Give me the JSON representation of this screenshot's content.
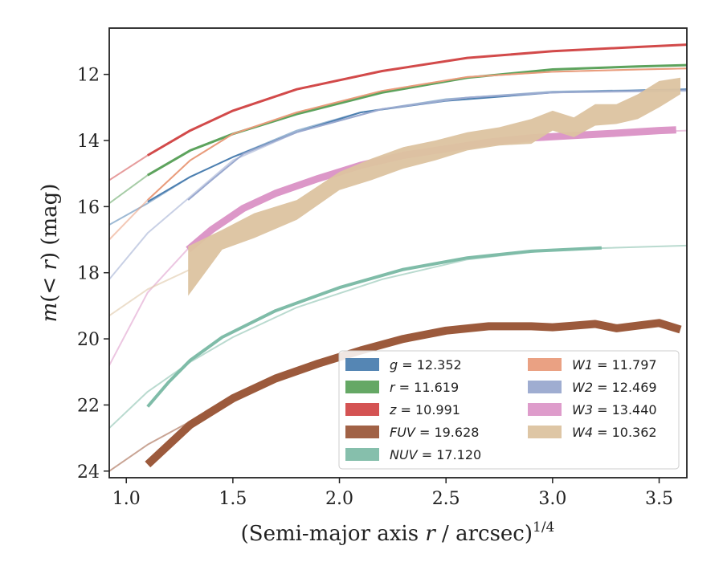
{
  "chart_data": {
    "type": "line",
    "xlabel_main": "(Semi-major axis ",
    "xlabel_var": "r",
    "xlabel_rest": " / arcsec)",
    "xlabel_sup": "1/4",
    "ylabel_m": "m",
    "ylabel_paren": "(",
    "ylabel_lt": "< ",
    "ylabel_r": "r",
    "ylabel_close": ") (mag)",
    "xlim": [
      0.92,
      3.63
    ],
    "ylim": [
      24.2,
      10.6
    ],
    "y_inverted": true,
    "x_ticks": [
      1.0,
      1.5,
      2.0,
      2.5,
      3.0,
      3.5
    ],
    "x_tick_labels": [
      "1.0",
      "1.5",
      "2.0",
      "2.5",
      "3.0",
      "3.5"
    ],
    "y_ticks": [
      12,
      14,
      16,
      18,
      20,
      22,
      24
    ],
    "y_tick_labels": [
      "12",
      "14",
      "16",
      "18",
      "20",
      "22",
      "24"
    ],
    "grid": false,
    "legend_placement": "lower-right",
    "legend_columns": 2,
    "series": [
      {
        "name": "g",
        "legend_var": "g",
        "legend_value": "= 12.352",
        "color": "#4c7fb0",
        "ext_x": [
          0.92,
          1.1,
          1.3,
          1.5,
          1.8,
          2.1,
          2.5,
          3.0,
          3.63
        ],
        "ext_y": [
          16.55,
          15.9,
          15.1,
          14.5,
          13.7,
          13.15,
          12.75,
          12.52,
          12.45
        ],
        "x": [
          1.1,
          1.3,
          1.5,
          1.8,
          2.1,
          2.5,
          3.0,
          3.5,
          3.63
        ],
        "y": [
          15.85,
          15.1,
          14.5,
          13.75,
          13.15,
          12.8,
          12.55,
          12.47,
          12.45
        ],
        "width": 2
      },
      {
        "name": "r",
        "legend_var": "r",
        "legend_value": "= 11.619",
        "color": "#5da35d",
        "ext_x": [
          0.92,
          1.1,
          1.3,
          1.5,
          1.8,
          2.2,
          2.6,
          3.0,
          3.63
        ],
        "ext_y": [
          15.9,
          15.05,
          14.3,
          13.8,
          13.2,
          12.55,
          12.1,
          11.85,
          11.72
        ],
        "x": [
          1.1,
          1.3,
          1.5,
          1.8,
          2.2,
          2.6,
          3.0,
          3.4,
          3.63
        ],
        "y": [
          15.05,
          14.3,
          13.8,
          13.2,
          12.55,
          12.1,
          11.85,
          11.76,
          11.72
        ],
        "width": 3
      },
      {
        "name": "z",
        "legend_var": "z",
        "legend_value": "= 10.991",
        "color": "#d24a4a",
        "ext_x": [
          0.92,
          1.1,
          1.3,
          1.5,
          1.8,
          2.2,
          2.6,
          3.0,
          3.63
        ],
        "ext_y": [
          15.2,
          14.45,
          13.7,
          13.1,
          12.45,
          11.9,
          11.5,
          11.3,
          11.1
        ],
        "x": [
          1.1,
          1.3,
          1.5,
          1.8,
          2.2,
          2.6,
          3.0,
          3.4,
          3.63
        ],
        "y": [
          14.45,
          13.7,
          13.1,
          12.45,
          11.9,
          11.5,
          11.3,
          11.17,
          11.1
        ],
        "width": 3
      },
      {
        "name": "FUV",
        "legend_var": "FUV",
        "legend_value": "= 19.628",
        "color": "#9c5a3c",
        "ext_x": [
          0.92,
          1.1,
          1.3,
          1.5
        ],
        "ext_y": [
          24.0,
          23.2,
          22.5,
          21.9
        ],
        "x": [
          1.1,
          1.3,
          1.5,
          1.7,
          1.9,
          2.1,
          2.3,
          2.5,
          2.7,
          2.9,
          3.0,
          3.1,
          3.2,
          3.3,
          3.4,
          3.5,
          3.6
        ],
        "y": [
          23.8,
          22.6,
          21.8,
          21.2,
          20.75,
          20.35,
          20.0,
          19.75,
          19.62,
          19.62,
          19.65,
          19.6,
          19.55,
          19.68,
          19.6,
          19.52,
          19.72
        ],
        "width": 10
      },
      {
        "name": "NUV",
        "legend_var": "NUV",
        "legend_value": "= 17.120",
        "color": "#7fbca8",
        "ext_x": [
          0.92,
          1.1,
          1.3,
          1.5,
          1.8,
          2.2,
          2.6,
          3.0,
          3.63
        ],
        "ext_y": [
          22.7,
          21.6,
          20.7,
          19.95,
          19.05,
          18.2,
          17.6,
          17.3,
          17.18
        ],
        "x": [
          1.1,
          1.2,
          1.3,
          1.45,
          1.7,
          2.0,
          2.3,
          2.6,
          2.9,
          3.23
        ],
        "y": [
          22.05,
          21.3,
          20.65,
          19.95,
          19.15,
          18.45,
          17.9,
          17.55,
          17.35,
          17.25
        ],
        "width": 4
      },
      {
        "name": "W1",
        "legend_var": "W1",
        "legend_value": "= 11.797",
        "color": "#e99c7c",
        "ext_x": [
          0.92,
          1.1,
          1.3,
          1.5,
          1.8,
          2.2,
          2.6,
          3.0,
          3.63
        ],
        "ext_y": [
          17.0,
          15.8,
          14.6,
          13.8,
          13.15,
          12.5,
          12.08,
          11.92,
          11.82
        ],
        "x": [
          1.1,
          1.3,
          1.5,
          1.8,
          2.2,
          2.6,
          3.0,
          3.4,
          3.63
        ],
        "y": [
          15.8,
          14.6,
          13.8,
          13.15,
          12.5,
          12.08,
          11.92,
          11.85,
          11.82
        ],
        "width": 2
      },
      {
        "name": "W2",
        "legend_var": "W2",
        "legend_value": "= 12.469",
        "color": "#9aa9cf",
        "ext_x": [
          0.92,
          1.1,
          1.3,
          1.5,
          1.8,
          2.2,
          2.6,
          3.0,
          3.63
        ],
        "ext_y": [
          18.2,
          16.8,
          15.7,
          14.6,
          13.75,
          13.05,
          12.7,
          12.55,
          12.5
        ],
        "x": [
          1.29,
          1.4,
          1.55,
          1.8,
          2.2,
          2.6,
          3.0,
          3.4,
          3.63
        ],
        "y": [
          15.8,
          15.2,
          14.4,
          13.75,
          13.05,
          12.7,
          12.55,
          12.5,
          12.48
        ],
        "width": 2
      },
      {
        "name": "W3",
        "legend_var": "W3",
        "legend_value": "= 13.440",
        "color": "#dc97c8",
        "ext_x": [
          0.92,
          1.1,
          1.3,
          1.5,
          1.8,
          2.2,
          2.6,
          3.0,
          3.63
        ],
        "ext_y": [
          20.8,
          18.6,
          17.2,
          16.2,
          15.35,
          14.6,
          14.1,
          13.85,
          13.7
        ],
        "x": [
          1.29,
          1.4,
          1.55,
          1.7,
          1.9,
          2.1,
          2.3,
          2.5,
          2.7,
          2.9,
          3.1,
          3.3,
          3.5,
          3.58
        ],
        "y": [
          17.3,
          16.7,
          16.05,
          15.6,
          15.15,
          14.75,
          14.45,
          14.25,
          14.05,
          13.92,
          13.85,
          13.78,
          13.7,
          13.68
        ],
        "width": 9
      },
      {
        "name": "W4",
        "legend_var": "W4",
        "legend_value": "= 10.362",
        "color": "#dcc3a0",
        "ext_x": [
          0.92,
          1.1,
          1.3
        ],
        "ext_y": [
          19.3,
          18.5,
          17.9
        ],
        "band_x": [
          1.29,
          1.45,
          1.6,
          1.8,
          2.0,
          2.15,
          2.3,
          2.45,
          2.6,
          2.75,
          2.9,
          3.0,
          3.1,
          3.2,
          3.3,
          3.4,
          3.5,
          3.6
        ],
        "band_upper": [
          17.2,
          16.7,
          16.2,
          15.8,
          14.95,
          14.55,
          14.2,
          14.0,
          13.75,
          13.6,
          13.35,
          13.1,
          13.3,
          12.9,
          12.9,
          12.6,
          12.2,
          12.1
        ],
        "band_lower": [
          18.7,
          17.3,
          16.95,
          16.4,
          15.5,
          15.2,
          14.85,
          14.6,
          14.3,
          14.15,
          14.1,
          13.7,
          13.9,
          13.55,
          13.5,
          13.35,
          13.0,
          12.6
        ]
      }
    ]
  }
}
